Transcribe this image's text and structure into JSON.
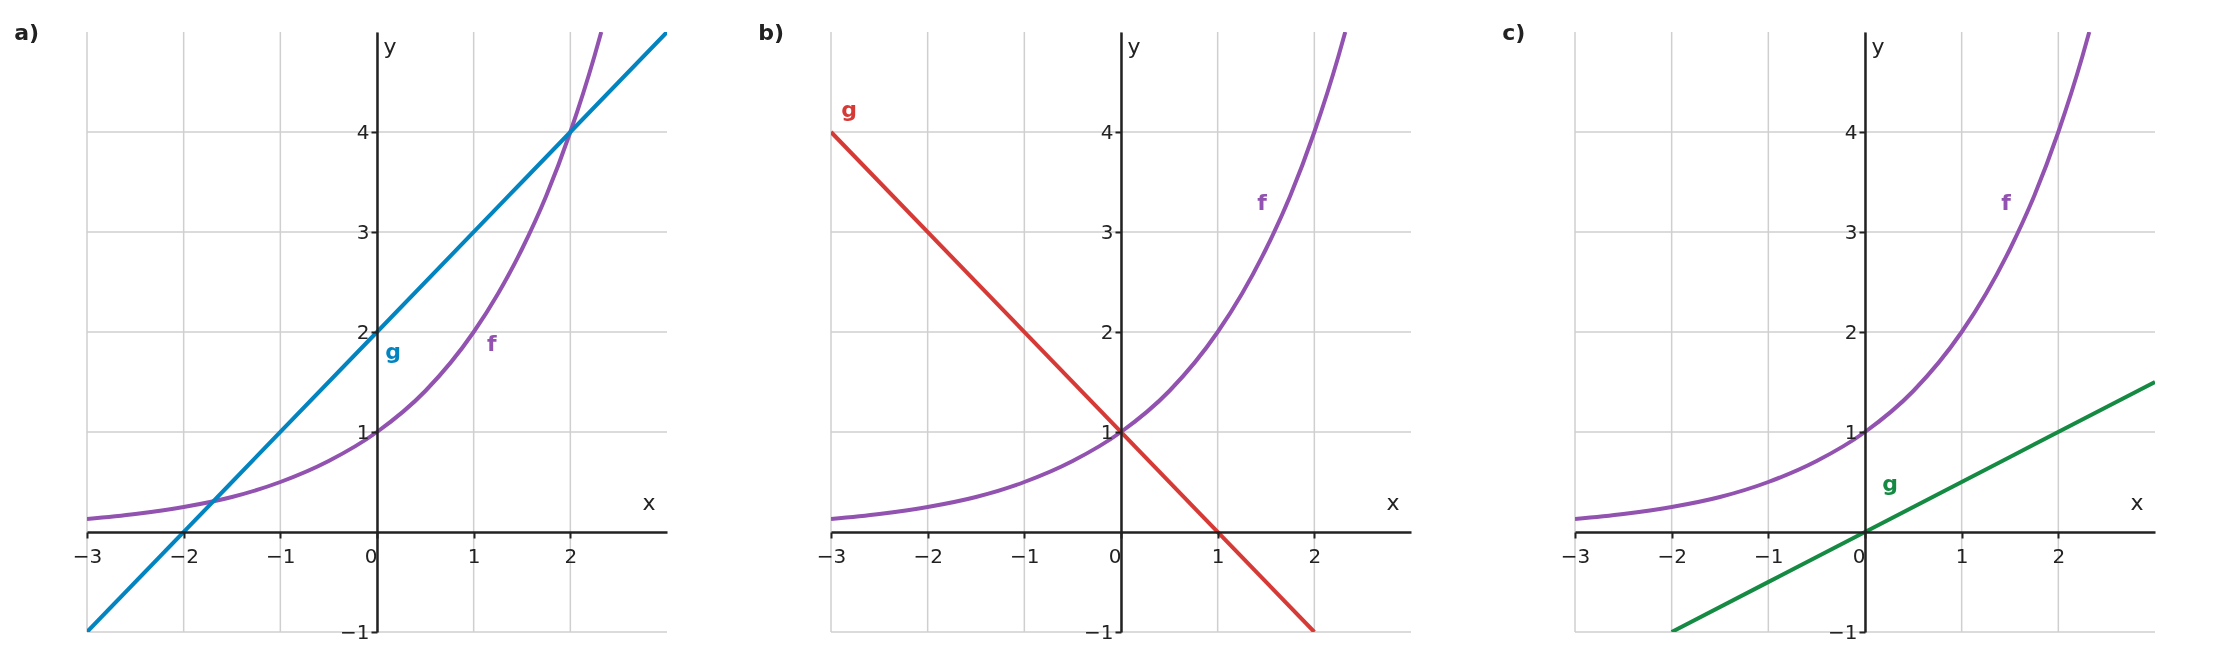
{
  "chart_data": [
    {
      "type": "line",
      "title": "a)",
      "xlabel": "x",
      "ylabel": "y",
      "xlim": [
        -3,
        3
      ],
      "ylim": [
        -1,
        5
      ],
      "xticks": [
        -3,
        -2,
        -1,
        0,
        1,
        2
      ],
      "yticks": [
        -1,
        1,
        2,
        3,
        4
      ],
      "grid": true,
      "legend": false,
      "series": [
        {
          "name": "f",
          "color": "#9252b0",
          "x": [
            -3,
            -2.5,
            -2,
            -1.5,
            -1,
            -0.5,
            0,
            0.5,
            1,
            1.25,
            1.5,
            1.75,
            2,
            2.25,
            2.32
          ],
          "values": [
            0.13,
            0.18,
            0.25,
            0.35,
            0.5,
            0.71,
            1,
            1.41,
            2,
            2.38,
            2.83,
            3.36,
            4,
            4.76,
            5
          ]
        },
        {
          "name": "g",
          "color": "#0284c0",
          "x": [
            -3,
            0,
            3
          ],
          "values": [
            -1,
            2,
            5
          ]
        }
      ]
    },
    {
      "type": "line",
      "title": "b)",
      "xlabel": "x",
      "ylabel": "y",
      "xlim": [
        -3,
        3
      ],
      "ylim": [
        -1,
        5
      ],
      "xticks": [
        -3,
        -2,
        -1,
        0,
        1,
        2
      ],
      "yticks": [
        -1,
        1,
        2,
        3,
        4
      ],
      "grid": true,
      "legend": false,
      "series": [
        {
          "name": "f",
          "color": "#9252b0",
          "x": [
            -3,
            -2.5,
            -2,
            -1.5,
            -1,
            -0.5,
            0,
            0.5,
            1,
            1.25,
            1.5,
            1.75,
            2,
            2.25,
            2.32
          ],
          "values": [
            0.13,
            0.18,
            0.25,
            0.35,
            0.5,
            0.71,
            1,
            1.41,
            2,
            2.38,
            2.83,
            3.36,
            4,
            4.76,
            5
          ]
        },
        {
          "name": "g",
          "color": "#d63a36",
          "x": [
            -3,
            2
          ],
          "values": [
            4,
            -1
          ]
        }
      ]
    },
    {
      "type": "line",
      "title": "c)",
      "xlabel": "x",
      "ylabel": "y",
      "xlim": [
        -3,
        3
      ],
      "ylim": [
        -1,
        5
      ],
      "xticks": [
        -3,
        -2,
        -1,
        0,
        1,
        2
      ],
      "yticks": [
        -1,
        1,
        2,
        3,
        4
      ],
      "grid": true,
      "legend": false,
      "series": [
        {
          "name": "f",
          "color": "#9252b0",
          "x": [
            -3,
            -2.5,
            -2,
            -1.5,
            -1,
            -0.5,
            0,
            0.5,
            1,
            1.25,
            1.5,
            1.75,
            2,
            2.25,
            2.32
          ],
          "values": [
            0.13,
            0.18,
            0.25,
            0.35,
            0.5,
            0.71,
            1,
            1.41,
            2,
            2.38,
            2.83,
            3.36,
            4,
            4.76,
            5
          ]
        },
        {
          "name": "g",
          "color": "#158a43",
          "x": [
            -2,
            0,
            3
          ],
          "values": [
            -1,
            0,
            1.5
          ]
        }
      ]
    }
  ]
}
